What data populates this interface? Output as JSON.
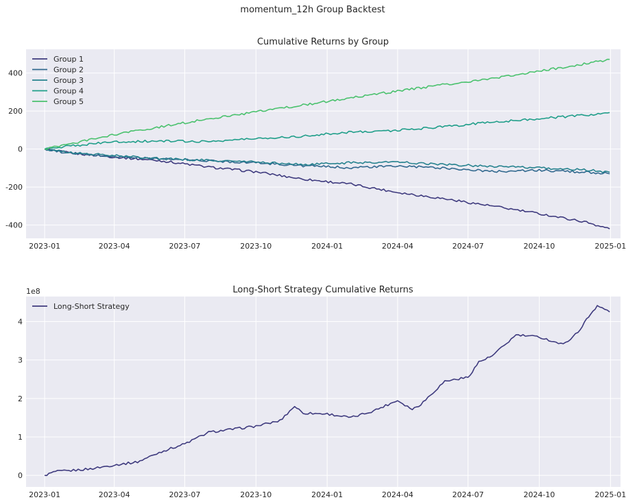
{
  "figure": {
    "suptitle": "momentum_12h Group Backtest"
  },
  "chart_data": [
    {
      "type": "line",
      "title": "Cumulative Returns by Group",
      "xlabel": "",
      "ylabel": "",
      "x_ticks": [
        "2023-01",
        "2023-04",
        "2023-07",
        "2023-10",
        "2024-01",
        "2024-04",
        "2024-07",
        "2024-10",
        "2025-01"
      ],
      "y_ticks": [
        -400,
        -200,
        0,
        200,
        400
      ],
      "xlim": [
        "2022-12-08",
        "2025-01-14"
      ],
      "ylim": [
        -470,
        525
      ],
      "grid": true,
      "legend": "top-left",
      "series": [
        {
          "name": "Group 1",
          "color": "#3e3a7e",
          "points": [
            [
              "2023-01-01",
              0
            ],
            [
              "2023-02-01",
              -20
            ],
            [
              "2023-04-01",
              -42
            ],
            [
              "2023-06-01",
              -62
            ],
            [
              "2023-08-01",
              -95
            ],
            [
              "2023-10-01",
              -120
            ],
            [
              "2023-12-01",
              -158
            ],
            [
              "2024-02-01",
              -185
            ],
            [
              "2024-04-01",
              -228
            ],
            [
              "2024-06-01",
              -262
            ],
            [
              "2024-08-01",
              -300
            ],
            [
              "2024-10-01",
              -340
            ],
            [
              "2024-12-01",
              -385
            ],
            [
              "2024-12-31",
              -420
            ]
          ]
        },
        {
          "name": "Group 2",
          "color": "#31688e",
          "points": [
            [
              "2023-01-01",
              0
            ],
            [
              "2023-02-01",
              -22
            ],
            [
              "2023-04-01",
              -40
            ],
            [
              "2023-06-01",
              -52
            ],
            [
              "2023-08-01",
              -62
            ],
            [
              "2023-10-01",
              -72
            ],
            [
              "2023-12-01",
              -88
            ],
            [
              "2024-02-01",
              -98
            ],
            [
              "2024-04-01",
              -90
            ],
            [
              "2024-06-01",
              -100
            ],
            [
              "2024-08-01",
              -118
            ],
            [
              "2024-10-01",
              -112
            ],
            [
              "2024-12-01",
              -122
            ],
            [
              "2024-12-31",
              -130
            ]
          ]
        },
        {
          "name": "Group 3",
          "color": "#26828e",
          "points": [
            [
              "2023-01-01",
              0
            ],
            [
              "2023-02-01",
              -18
            ],
            [
              "2023-04-01",
              -35
            ],
            [
              "2023-06-01",
              -50
            ],
            [
              "2023-08-01",
              -60
            ],
            [
              "2023-10-01",
              -68
            ],
            [
              "2023-12-01",
              -82
            ],
            [
              "2024-02-01",
              -72
            ],
            [
              "2024-04-01",
              -68
            ],
            [
              "2024-06-01",
              -82
            ],
            [
              "2024-08-01",
              -90
            ],
            [
              "2024-10-01",
              -100
            ],
            [
              "2024-12-01",
              -110
            ],
            [
              "2024-12-31",
              -122
            ]
          ]
        },
        {
          "name": "Group 4",
          "color": "#1f9e89",
          "points": [
            [
              "2023-01-01",
              0
            ],
            [
              "2023-02-01",
              15
            ],
            [
              "2023-04-01",
              38
            ],
            [
              "2023-06-01",
              42
            ],
            [
              "2023-08-01",
              40
            ],
            [
              "2023-10-01",
              55
            ],
            [
              "2023-12-01",
              68
            ],
            [
              "2024-02-01",
              90
            ],
            [
              "2024-04-01",
              98
            ],
            [
              "2024-06-01",
              118
            ],
            [
              "2024-08-01",
              142
            ],
            [
              "2024-10-01",
              160
            ],
            [
              "2024-12-01",
              178
            ],
            [
              "2024-12-31",
              192
            ]
          ]
        },
        {
          "name": "Group 5",
          "color": "#4ac16d",
          "points": [
            [
              "2023-01-01",
              0
            ],
            [
              "2023-02-01",
              25
            ],
            [
              "2023-04-01",
              75
            ],
            [
              "2023-06-01",
              118
            ],
            [
              "2023-08-01",
              160
            ],
            [
              "2023-10-01",
              195
            ],
            [
              "2023-12-01",
              232
            ],
            [
              "2024-02-01",
              270
            ],
            [
              "2024-04-01",
              305
            ],
            [
              "2024-06-01",
              340
            ],
            [
              "2024-08-01",
              370
            ],
            [
              "2024-10-01",
              410
            ],
            [
              "2024-12-01",
              450
            ],
            [
              "2024-12-31",
              472
            ]
          ]
        }
      ]
    },
    {
      "type": "line",
      "title": "Long-Short Strategy Cumulative Returns",
      "xlabel": "",
      "ylabel": "",
      "y_offset_label": "1e8",
      "x_ticks": [
        "2023-01",
        "2023-04",
        "2023-07",
        "2023-10",
        "2024-01",
        "2024-04",
        "2024-07",
        "2024-10",
        "2025-01"
      ],
      "y_ticks": [
        "0",
        "1",
        "2",
        "3",
        "4"
      ],
      "xlim": [
        "2022-12-08",
        "2025-01-14"
      ],
      "ylim": [
        -0.3,
        4.65
      ],
      "grid": true,
      "legend": "top-left",
      "series": [
        {
          "name": "Long-Short Strategy",
          "color": "#3e3a7e",
          "points": [
            [
              "2023-01-01",
              0
            ],
            [
              "2023-01-15",
              0.1
            ],
            [
              "2023-02-01",
              0.12
            ],
            [
              "2023-03-01",
              0.17
            ],
            [
              "2023-04-01",
              0.27
            ],
            [
              "2023-05-01",
              0.35
            ],
            [
              "2023-06-01",
              0.62
            ],
            [
              "2023-07-01",
              0.82
            ],
            [
              "2023-08-01",
              1.12
            ],
            [
              "2023-09-01",
              1.2
            ],
            [
              "2023-10-01",
              1.28
            ],
            [
              "2023-11-01",
              1.42
            ],
            [
              "2023-11-20",
              1.8
            ],
            [
              "2023-12-01",
              1.62
            ],
            [
              "2024-01-01",
              1.6
            ],
            [
              "2024-02-01",
              1.5
            ],
            [
              "2024-03-01",
              1.68
            ],
            [
              "2024-04-01",
              1.95
            ],
            [
              "2024-04-20",
              1.72
            ],
            [
              "2024-05-01",
              1.85
            ],
            [
              "2024-06-01",
              2.45
            ],
            [
              "2024-07-01",
              2.55
            ],
            [
              "2024-07-15",
              2.95
            ],
            [
              "2024-08-01",
              3.1
            ],
            [
              "2024-09-01",
              3.65
            ],
            [
              "2024-10-01",
              3.6
            ],
            [
              "2024-11-01",
              3.4
            ],
            [
              "2024-11-20",
              3.72
            ],
            [
              "2024-12-01",
              4.05
            ],
            [
              "2024-12-15",
              4.42
            ],
            [
              "2024-12-31",
              4.25
            ]
          ]
        }
      ]
    }
  ]
}
